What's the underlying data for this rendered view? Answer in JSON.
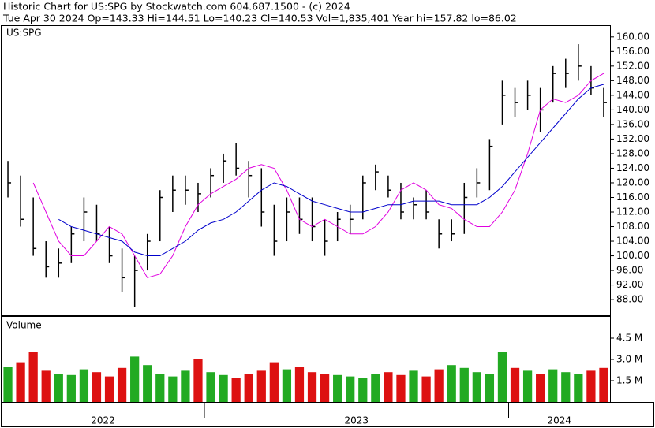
{
  "chart_data": {
    "type": "ohlc",
    "title": "Historic Chart for US:SPG by Stockwatch.com 604.687.1500 - (c) 2024",
    "subtitle": "Tue Apr 30 2024   Op=143.33   Hi=144.51   Lo=140.23   Cl=140.53   Vol=1,835,401   Year hi=157.82   lo=86.02",
    "symbol": "US:SPG",
    "color": "#000000",
    "high": [
      126,
      122,
      116,
      104,
      102,
      108,
      116,
      114,
      108,
      102,
      100,
      106,
      118,
      122,
      122,
      120,
      124,
      128,
      131,
      126,
      124,
      114,
      116,
      116,
      116,
      110,
      112,
      114,
      122,
      125,
      122,
      120,
      116,
      118,
      110,
      110,
      120,
      124,
      132,
      148,
      146,
      148,
      146,
      152,
      154,
      158,
      152,
      146
    ],
    "low": [
      116,
      108,
      100,
      94,
      94,
      98,
      104,
      104,
      98,
      90,
      86,
      96,
      104,
      112,
      114,
      112,
      116,
      120,
      122,
      116,
      108,
      100,
      104,
      106,
      104,
      100,
      104,
      106,
      110,
      118,
      116,
      110,
      110,
      110,
      102,
      104,
      106,
      116,
      118,
      136,
      138,
      140,
      134,
      142,
      146,
      148,
      144,
      138
    ],
    "close": [
      120,
      110,
      102,
      97,
      98,
      106,
      112,
      106,
      100,
      94,
      96,
      104,
      116,
      118,
      118,
      117,
      122,
      126,
      124,
      122,
      112,
      104,
      112,
      110,
      108,
      104,
      110,
      110,
      120,
      123,
      118,
      112,
      114,
      112,
      106,
      106,
      116,
      120,
      130,
      144,
      142,
      144,
      140,
      150,
      150,
      152,
      146,
      142
    ],
    "moving_averages": [
      {
        "color": "#e000e0",
        "values": [
          null,
          null,
          120,
          112,
          104,
          100,
          100,
          104,
          108,
          106,
          100,
          94,
          95,
          100,
          108,
          114,
          117,
          119,
          121,
          124,
          125,
          124,
          118,
          110,
          108,
          110,
          108,
          106,
          106,
          108,
          112,
          118,
          120,
          118,
          114,
          113,
          110,
          108,
          108,
          112,
          118,
          128,
          140,
          143,
          142,
          144,
          148,
          150
        ]
      },
      {
        "color": "#0000cc",
        "values": [
          null,
          null,
          null,
          null,
          110,
          108,
          107,
          106,
          105,
          104,
          101,
          100,
          100,
          102,
          104,
          107,
          109,
          110,
          112,
          115,
          118,
          120,
          119,
          117,
          115,
          114,
          113,
          112,
          112,
          113,
          114,
          114,
          115,
          115,
          115,
          114,
          114,
          114,
          116,
          119,
          123,
          127,
          131,
          135,
          139,
          143,
          146,
          147
        ]
      }
    ],
    "ylim": [
      83.7,
      163.2
    ],
    "yticks": [
      {
        "value": 88,
        "label": "88.00"
      },
      {
        "value": 92,
        "label": "92.00"
      },
      {
        "value": 96,
        "label": "96.00"
      },
      {
        "value": 100,
        "label": "100.00"
      },
      {
        "value": 104,
        "label": "104.00"
      },
      {
        "value": 108,
        "label": "108.00"
      },
      {
        "value": 112,
        "label": "112.00"
      },
      {
        "value": 116,
        "label": "116.00"
      },
      {
        "value": 120,
        "label": "120.00"
      },
      {
        "value": 124,
        "label": "124.00"
      },
      {
        "value": 128,
        "label": "128.00"
      },
      {
        "value": 132,
        "label": "132.00"
      },
      {
        "value": 136,
        "label": "136.00"
      },
      {
        "value": 140,
        "label": "140.00"
      },
      {
        "value": 144,
        "label": "144.00"
      },
      {
        "value": 148,
        "label": "148.00"
      },
      {
        "value": 152,
        "label": "152.00"
      },
      {
        "value": 156,
        "label": "156.00"
      },
      {
        "value": 160,
        "label": "160.00"
      }
    ],
    "volume": {
      "label": "Volume",
      "values": [
        2.5,
        2.8,
        3.5,
        2.2,
        2.0,
        1.9,
        2.3,
        2.1,
        1.8,
        2.4,
        3.2,
        2.6,
        2.0,
        1.8,
        2.2,
        3.0,
        2.1,
        1.9,
        1.7,
        2.0,
        2.2,
        2.8,
        2.3,
        2.5,
        2.1,
        2.0,
        1.9,
        1.8,
        1.7,
        2.0,
        2.1,
        1.9,
        2.2,
        1.8,
        2.3,
        2.6,
        2.4,
        2.1,
        2.0,
        3.5,
        2.4,
        2.2,
        2.0,
        2.3,
        2.1,
        2.0,
        2.2,
        2.4
      ],
      "up_color": "#22aa22",
      "down_color": "#dd1111",
      "ylim": [
        0,
        6
      ],
      "yticks": [
        {
          "value": 1.5,
          "label": "1.5 M"
        },
        {
          "value": 3,
          "label": "3.0 M"
        },
        {
          "value": 4.5,
          "label": "4.5 M"
        }
      ]
    },
    "years": [
      "2022",
      "2023",
      "2024"
    ],
    "year_starts": [
      0,
      16,
      40
    ]
  }
}
